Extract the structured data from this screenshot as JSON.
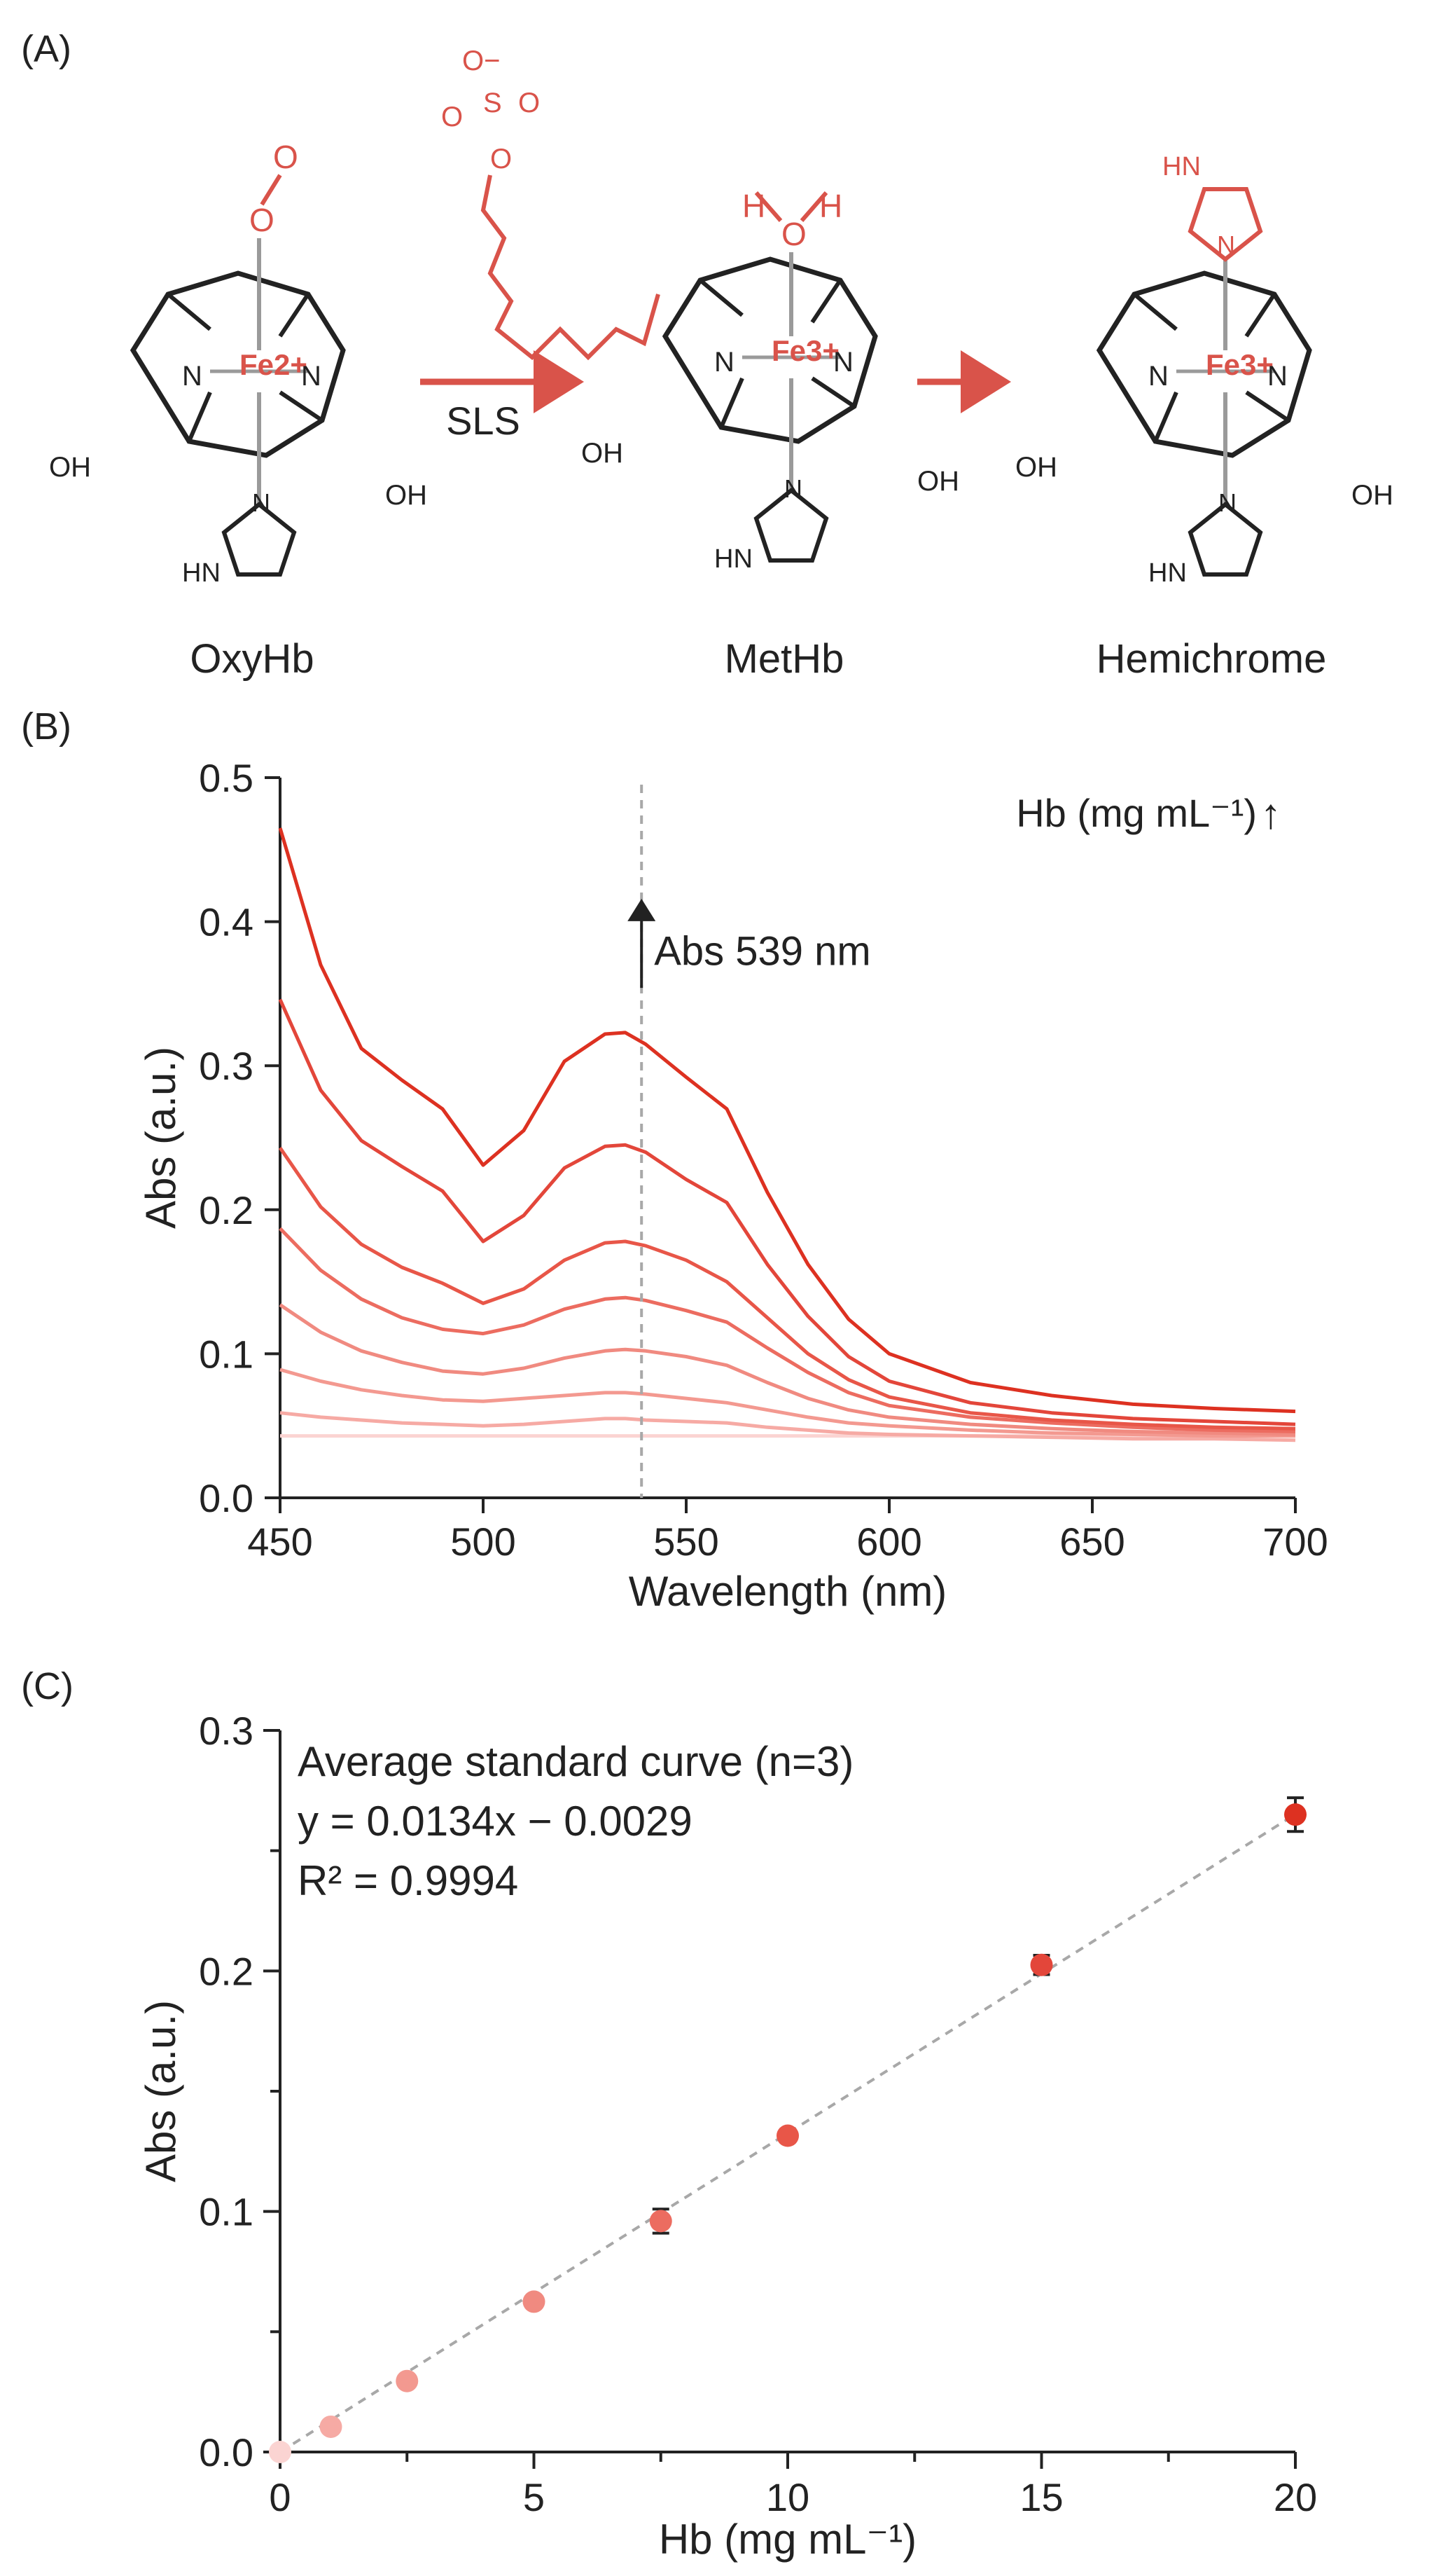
{
  "panel_labels": {
    "a": "(A)",
    "b": "(B)",
    "c": "(C)"
  },
  "colors": {
    "accent": "#d9534a",
    "ink": "#222222",
    "gray": "#9a9a9a",
    "dashed": "#a8a8a8"
  },
  "schematic": {
    "species": [
      "OxyHb",
      "MetHb",
      "Hemichrome"
    ],
    "arrow_label": "SLS",
    "iron_labels": [
      "Fe2+",
      "Fe3+",
      "Fe3+"
    ],
    "atom_labels": {
      "n": "N",
      "o": "O",
      "h": "H",
      "hn": "HN",
      "oh": "OH",
      "s": "S",
      "o_minus": "O−"
    }
  },
  "chart_data": [
    {
      "type": "line",
      "panel": "B",
      "title": "",
      "xlabel": "Wavelength (nm)",
      "ylabel": "Abs (a.u.)",
      "xlim": [
        450,
        700
      ],
      "ylim": [
        0,
        0.5
      ],
      "x_ticks": [
        450,
        500,
        550,
        600,
        650,
        700
      ],
      "y_ticks": [
        0.0,
        0.1,
        0.2,
        0.3,
        0.4,
        0.5
      ],
      "x_tick_labels": [
        "450",
        "500",
        "550",
        "600",
        "650",
        "700"
      ],
      "y_tick_labels": [
        "0.0",
        "0.1",
        "0.2",
        "0.3",
        "0.4",
        "0.5"
      ],
      "legend_text": "Hb (mg mL⁻¹)",
      "legend_arrow": "↑",
      "legend_position": "top-right",
      "annotation": {
        "text": "Abs 539 nm",
        "x": 539
      },
      "grid": false,
      "x": [
        450,
        460,
        470,
        480,
        490,
        500,
        510,
        520,
        530,
        535,
        540,
        550,
        560,
        570,
        580,
        590,
        600,
        620,
        640,
        660,
        680,
        700
      ],
      "series": [
        {
          "color": "#fbd4d2",
          "values": [
            0.043,
            0.043,
            0.043,
            0.043,
            0.043,
            0.043,
            0.043,
            0.043,
            0.043,
            0.043,
            0.043,
            0.043,
            0.043,
            0.043,
            0.043,
            0.043,
            0.043,
            0.043,
            0.043,
            0.043,
            0.043,
            0.043
          ]
        },
        {
          "color": "#f6aaa4",
          "values": [
            0.059,
            0.056,
            0.054,
            0.052,
            0.051,
            0.05,
            0.051,
            0.053,
            0.055,
            0.055,
            0.054,
            0.053,
            0.052,
            0.049,
            0.047,
            0.045,
            0.044,
            0.043,
            0.042,
            0.041,
            0.041,
            0.04
          ]
        },
        {
          "color": "#f39990",
          "values": [
            0.089,
            0.081,
            0.075,
            0.071,
            0.068,
            0.067,
            0.069,
            0.071,
            0.073,
            0.073,
            0.072,
            0.069,
            0.066,
            0.061,
            0.056,
            0.052,
            0.05,
            0.047,
            0.045,
            0.044,
            0.043,
            0.043
          ]
        },
        {
          "color": "#f08a80",
          "values": [
            0.134,
            0.115,
            0.102,
            0.094,
            0.088,
            0.086,
            0.09,
            0.097,
            0.102,
            0.103,
            0.102,
            0.098,
            0.092,
            0.08,
            0.069,
            0.061,
            0.056,
            0.051,
            0.048,
            0.046,
            0.045,
            0.044
          ]
        },
        {
          "color": "#ec6c60",
          "values": [
            0.187,
            0.158,
            0.138,
            0.125,
            0.117,
            0.114,
            0.12,
            0.131,
            0.138,
            0.139,
            0.137,
            0.13,
            0.122,
            0.104,
            0.087,
            0.073,
            0.064,
            0.056,
            0.052,
            0.049,
            0.047,
            0.046
          ]
        },
        {
          "color": "#e85648",
          "values": [
            0.243,
            0.202,
            0.176,
            0.16,
            0.149,
            0.135,
            0.145,
            0.165,
            0.177,
            0.178,
            0.175,
            0.165,
            0.15,
            0.125,
            0.1,
            0.082,
            0.07,
            0.059,
            0.054,
            0.051,
            0.049,
            0.048
          ]
        },
        {
          "color": "#e3463a",
          "values": [
            0.346,
            0.283,
            0.248,
            0.23,
            0.213,
            0.178,
            0.196,
            0.229,
            0.244,
            0.245,
            0.24,
            0.221,
            0.205,
            0.162,
            0.126,
            0.098,
            0.081,
            0.066,
            0.059,
            0.055,
            0.053,
            0.051
          ]
        },
        {
          "color": "#dd3121",
          "values": [
            0.465,
            0.37,
            0.312,
            0.29,
            0.27,
            0.231,
            0.255,
            0.303,
            0.322,
            0.323,
            0.315,
            0.292,
            0.27,
            0.212,
            0.162,
            0.124,
            0.1,
            0.08,
            0.071,
            0.065,
            0.062,
            0.06
          ]
        }
      ]
    },
    {
      "type": "scatter",
      "panel": "C",
      "xlabel": "Hb (mg mL⁻¹)",
      "ylabel": "Abs (a.u.)",
      "xlim": [
        0,
        20
      ],
      "ylim": [
        0,
        0.3
      ],
      "x_ticks": [
        0,
        5,
        10,
        15,
        20
      ],
      "y_ticks": [
        0.0,
        0.1,
        0.2,
        0.3
      ],
      "x_tick_labels": [
        "0",
        "5",
        "10",
        "15",
        "20"
      ],
      "y_tick_labels": [
        "0.0",
        "0.1",
        "0.2",
        "0.3"
      ],
      "annotation_lines": [
        "Average standard curve (n=3)",
        "y = 0.0134x − 0.0029",
        "R² = 0.9994"
      ],
      "fit": {
        "slope": 0.0134,
        "intercept": -0.0029,
        "r2": 0.9994
      },
      "grid": false,
      "points": [
        {
          "x": 0,
          "y": 0.0,
          "err": 0.0,
          "color": "#fbd4d2"
        },
        {
          "x": 1,
          "y": 0.0105,
          "err": 0.0012,
          "color": "#f6aaa4"
        },
        {
          "x": 2.5,
          "y": 0.0295,
          "err": 0.0015,
          "color": "#f39990"
        },
        {
          "x": 5,
          "y": 0.0625,
          "err": 0.0018,
          "color": "#f08a80"
        },
        {
          "x": 7.5,
          "y": 0.096,
          "err": 0.005,
          "color": "#ec6c60"
        },
        {
          "x": 10,
          "y": 0.1315,
          "err": 0.0025,
          "color": "#e85648"
        },
        {
          "x": 15,
          "y": 0.2025,
          "err": 0.004,
          "color": "#e3463a"
        },
        {
          "x": 20,
          "y": 0.265,
          "err": 0.007,
          "color": "#dd3121"
        }
      ]
    }
  ]
}
